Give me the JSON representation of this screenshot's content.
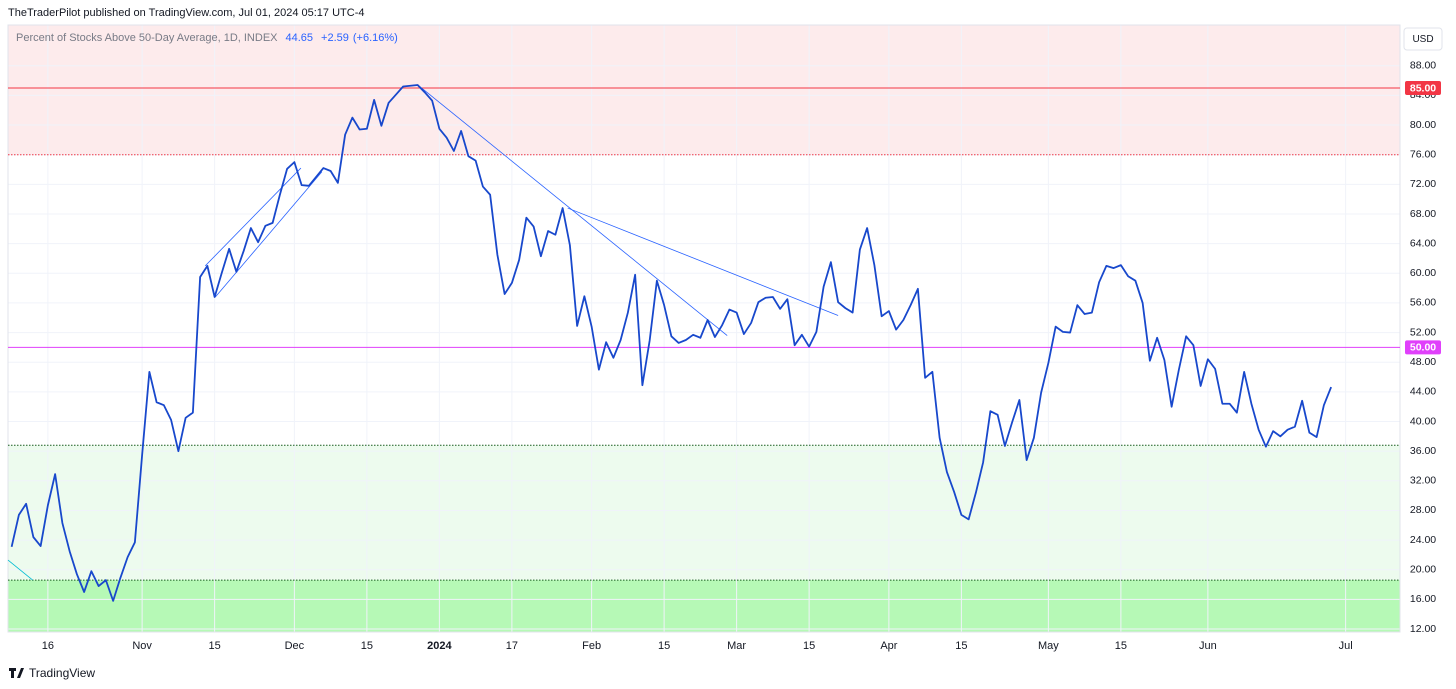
{
  "header": {
    "text": "TheTraderPilot published on TradingView.com, Jul 01, 2024 05:17 UTC-4"
  },
  "chart_data": {
    "type": "line",
    "title": "Percent of Stocks Above 50-Day Average, 1D, INDEX",
    "legend_values": {
      "last": 44.65,
      "change": {
        "value": 2.59,
        "label": "+2.59"
      },
      "change_pct": {
        "value": 6.16,
        "label": "(+6.16%)"
      }
    },
    "currency": "USD",
    "categories": [
      null,
      null,
      null,
      null,
      null,
      "16",
      null,
      null,
      null,
      null,
      null,
      null,
      null,
      null,
      null,
      null,
      null,
      null,
      "Nov",
      null,
      null,
      null,
      null,
      null,
      null,
      null,
      null,
      null,
      "15",
      null,
      null,
      null,
      null,
      null,
      null,
      null,
      null,
      null,
      null,
      "Dec",
      null,
      null,
      null,
      null,
      null,
      null,
      null,
      null,
      null,
      "15",
      null,
      null,
      null,
      null,
      null,
      null,
      null,
      null,
      null,
      "2024",
      null,
      null,
      null,
      null,
      null,
      null,
      null,
      null,
      null,
      "17",
      null,
      null,
      null,
      null,
      null,
      null,
      null,
      null,
      null,
      null,
      "Feb",
      null,
      null,
      null,
      null,
      null,
      null,
      null,
      null,
      null,
      "15",
      null,
      null,
      null,
      null,
      null,
      null,
      null,
      null,
      null,
      "Mar",
      null,
      null,
      null,
      null,
      null,
      null,
      null,
      null,
      null,
      "15",
      null,
      null,
      null,
      null,
      null,
      null,
      null,
      null,
      null,
      null,
      "Apr",
      null,
      null,
      null,
      null,
      null,
      null,
      null,
      null,
      null,
      "15",
      null,
      null,
      null,
      null,
      null,
      null,
      null,
      null,
      null,
      null,
      null,
      "May",
      null,
      null,
      null,
      null,
      null,
      null,
      null,
      null,
      null,
      "15",
      null,
      null,
      null,
      null,
      null,
      null,
      null,
      null,
      null,
      null,
      null,
      "Jun",
      null,
      null,
      null,
      null,
      null,
      null,
      null,
      null,
      null,
      null,
      null,
      null,
      null,
      null,
      null,
      null,
      null,
      null,
      "Jul",
      null,
      null,
      null,
      null,
      null,
      null,
      null
    ],
    "values": [
      23.1,
      27.4,
      28.9,
      24.4,
      23.2,
      28.7,
      32.9,
      26.3,
      22.5,
      19.4,
      17.0,
      19.8,
      17.8,
      18.6,
      15.8,
      18.9,
      21.7,
      23.7,
      35.5,
      46.7,
      42.6,
      42.2,
      40.2,
      36.0,
      40.5,
      41.2,
      59.5,
      61.0,
      56.8,
      60.1,
      63.3,
      60.2,
      63.0,
      66.1,
      64.2,
      66.4,
      66.8,
      70.6,
      74.1,
      75.0,
      71.9,
      71.8,
      73.0,
      74.2,
      73.8,
      72.2,
      78.7,
      81.0,
      79.4,
      79.5,
      83.4,
      79.9,
      83.0,
      84.1,
      85.2,
      85.3,
      85.4,
      84.4,
      83.3,
      79.5,
      78.3,
      76.5,
      79.2,
      75.8,
      75.2,
      71.7,
      70.6,
      62.5,
      57.2,
      58.7,
      61.8,
      67.5,
      66.3,
      62.3,
      65.7,
      65.2,
      68.8,
      63.8,
      52.9,
      56.9,
      52.8,
      47.0,
      50.7,
      48.6,
      51.0,
      54.7,
      59.8,
      44.9,
      50.9,
      59.0,
      55.7,
      51.5,
      50.6,
      51.0,
      51.7,
      51.3,
      53.7,
      51.4,
      53.0,
      55.1,
      54.7,
      51.8,
      53.3,
      56.1,
      56.7,
      56.8,
      55.2,
      56.5,
      50.3,
      51.7,
      50.1,
      52.1,
      58.2,
      61.5,
      56.1,
      55.3,
      54.7,
      63.2,
      66.1,
      61.1,
      54.2,
      54.9,
      52.4,
      53.7,
      55.7,
      57.9,
      45.9,
      46.7,
      37.8,
      33.2,
      30.5,
      27.4,
      26.8,
      30.4,
      34.5,
      41.4,
      40.9,
      36.7,
      39.9,
      42.9,
      34.8,
      37.8,
      43.9,
      47.9,
      52.8,
      52.1,
      52.0,
      55.7,
      54.5,
      54.7,
      58.8,
      61.0,
      60.7,
      61.1,
      59.6,
      59.0,
      56.0,
      48.2,
      51.3,
      48.3,
      42.0,
      47.0,
      51.5,
      50.3,
      44.8,
      48.4,
      47.1,
      42.4,
      42.4,
      41.2,
      46.7,
      42.4,
      38.9,
      36.6,
      38.7,
      38.0,
      38.9,
      39.3,
      42.8,
      38.5,
      37.9,
      42.2,
      44.65,
      null,
      null,
      null,
      null,
      null,
      null,
      null,
      null,
      null
    ],
    "color": "#1848cc",
    "ylim": [
      11.6,
      93.5
    ],
    "yticks": [
      {
        "value": 12,
        "label": "12.00"
      },
      {
        "value": 16,
        "label": "16.00"
      },
      {
        "value": 20,
        "label": "20.00"
      },
      {
        "value": 24,
        "label": "24.00"
      },
      {
        "value": 28,
        "label": "28.00"
      },
      {
        "value": 32,
        "label": "32.00"
      },
      {
        "value": 36,
        "label": "36.00"
      },
      {
        "value": 40,
        "label": "40.00"
      },
      {
        "value": 44,
        "label": "44.00"
      },
      {
        "value": 48,
        "label": "48.00"
      },
      {
        "value": 52,
        "label": "52.00"
      },
      {
        "value": 56,
        "label": "56.00"
      },
      {
        "value": 60,
        "label": "60.00"
      },
      {
        "value": 64,
        "label": "64.00"
      },
      {
        "value": 68,
        "label": "68.00"
      },
      {
        "value": 72,
        "label": "72.00"
      },
      {
        "value": 76,
        "label": "76.00"
      },
      {
        "value": 80,
        "label": "80.00"
      },
      {
        "value": 84,
        "label": "84.00"
      },
      {
        "value": 88,
        "label": "88.00"
      }
    ],
    "grid": true,
    "zones": [
      {
        "from": 76,
        "to": 93.5,
        "color": "#fdebec"
      },
      {
        "from": 18.6,
        "to": 36.8,
        "color": "#edfbee"
      },
      {
        "from": 11.6,
        "to": 18.6,
        "color": "#b6f9b6"
      }
    ],
    "hlines": [
      {
        "value": 85,
        "label": "85.00",
        "color": "#f23645",
        "style": "solid"
      },
      {
        "value": 76,
        "color": "#f23645",
        "style": "dotted"
      },
      {
        "value": 50,
        "label": "50.00",
        "color": "#e040fb",
        "style": "solid"
      },
      {
        "value": 36.8,
        "color": "#1b5e20",
        "style": "dotted"
      },
      {
        "value": 18.6,
        "color": "#1b5e20",
        "style": "dotted"
      }
    ],
    "trendlines": [
      {
        "x": [
          26.7,
          39.9
        ],
        "y": [
          61.0,
          74.2
        ],
        "color": "#2962ff"
      },
      {
        "x": [
          28.1,
          42.8
        ],
        "y": [
          56.8,
          73.7
        ],
        "color": "#2962ff"
      },
      {
        "x": [
          56.3,
          98.7
        ],
        "y": [
          85.2,
          51.6
        ],
        "color": "#2962ff"
      },
      {
        "x": [
          76.7,
          114.0
        ],
        "y": [
          68.8,
          54.3
        ],
        "color": "#2962ff"
      },
      {
        "x": [
          -0.5,
          2.9
        ],
        "y": [
          21.3,
          18.6
        ],
        "color": "#00bcd4"
      }
    ]
  },
  "footer": {
    "brand": "TradingView"
  }
}
